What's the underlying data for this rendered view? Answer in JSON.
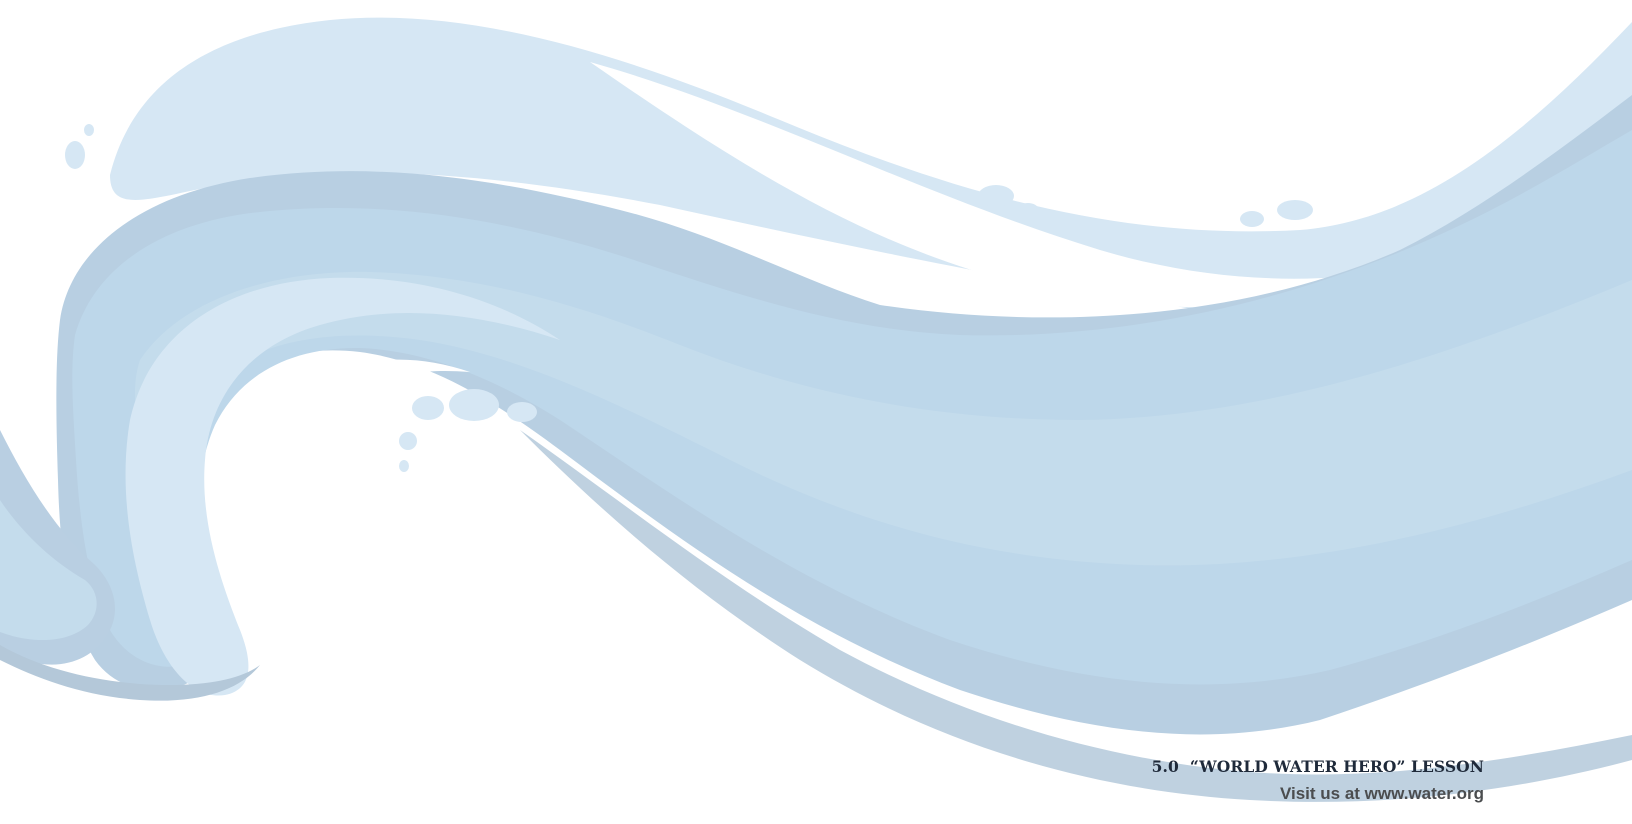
{
  "footer": {
    "lesson_title": "5.0  “WORLD WATER HERO” LESSON",
    "site_line": "Visit us at www.water.org"
  },
  "palette": {
    "background": "#ffffff",
    "wave_light": "#d6e7f4",
    "wave_mid": "#bdd7ea",
    "wave_blue": "#b9d9ee",
    "wave_shadow": "#a9bfd1",
    "text_dark": "#1f2a3a",
    "text_grey": "#4b4d4f"
  },
  "artwork": {
    "subject": "stylized water wave illustration"
  }
}
